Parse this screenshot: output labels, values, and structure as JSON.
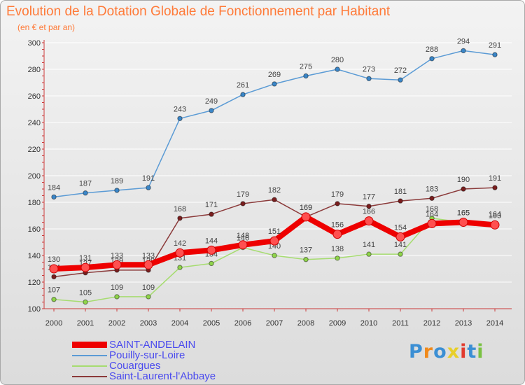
{
  "header": {
    "title": "Evolution de la Dotation Globale de Fonctionnement par Habitant",
    "subtitle": "(en € et par an)"
  },
  "brand": {
    "text": "Proxiti",
    "letter_colors": [
      "#3b8fd4",
      "#f08a1c",
      "#3b8fd4",
      "#e8cf2a",
      "#e23b2e",
      "#3b8fd4",
      "#7ac142"
    ]
  },
  "colors": {
    "axis": "#cc3a3a",
    "tick_label": "#333333",
    "value_label": "#444444",
    "grid": "#ffffff"
  },
  "chart_data": {
    "type": "line",
    "title": "Evolution de la Dotation Globale de Fonctionnement par Habitant",
    "subtitle": "(en € et par an)",
    "xlabel": "",
    "ylabel": "",
    "x": [
      "2000",
      "2001",
      "2002",
      "2003",
      "2004",
      "2005",
      "2006",
      "2007",
      "2008",
      "2009",
      "2010",
      "2011",
      "2012",
      "2013",
      "2014"
    ],
    "ylim": [
      100,
      300
    ],
    "yticks": [
      100,
      120,
      140,
      160,
      180,
      200,
      220,
      240,
      260,
      280,
      300
    ],
    "grid": "horizontal",
    "legend_position": "bottom-left",
    "series": [
      {
        "name": "SAINT-ANDELAIN",
        "color": "#ee0000",
        "marker_fill": "#ff5050",
        "emphasis": "thick",
        "values": [
          130,
          131,
          133,
          133,
          142,
          144,
          148,
          151,
          169,
          156,
          166,
          154,
          164,
          165,
          163
        ]
      },
      {
        "name": "Pouilly-sur-Loire",
        "color": "#5b9bd5",
        "marker_fill": "#3a86c8",
        "emphasis": "normal",
        "values": [
          184,
          187,
          189,
          191,
          243,
          249,
          261,
          269,
          275,
          280,
          273,
          272,
          288,
          294,
          291
        ]
      },
      {
        "name": "Couargues",
        "color": "#a6dc70",
        "marker_fill": "#8fd44a",
        "emphasis": "normal",
        "values": [
          107,
          105,
          109,
          109,
          131,
          134,
          146,
          140,
          137,
          138,
          141,
          141,
          168,
          165,
          164
        ]
      },
      {
        "name": "Saint-Laurent-l'Abbaye",
        "color": "#8b3a3a",
        "marker_fill": "#7a1e1e",
        "emphasis": "normal",
        "values": [
          124,
          127,
          129,
          129,
          168,
          171,
          179,
          182,
          169,
          179,
          177,
          181,
          183,
          190,
          191
        ]
      }
    ]
  }
}
